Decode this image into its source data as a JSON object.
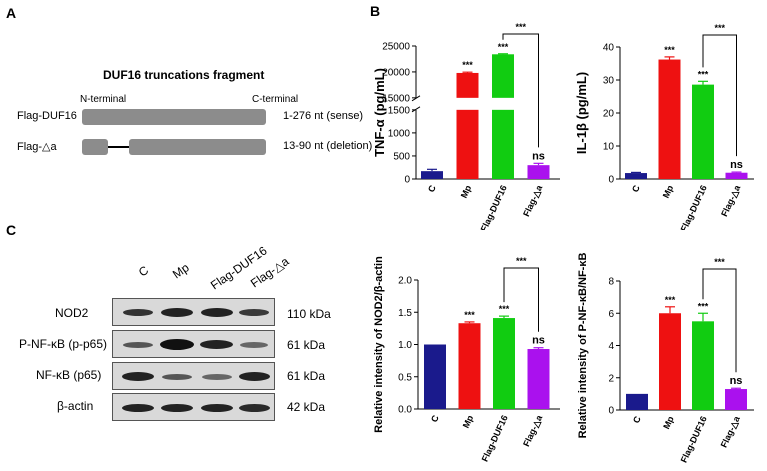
{
  "panels": {
    "a": "A",
    "b": "B",
    "c": "C"
  },
  "panel_a": {
    "title": "DUF16 truncations fragment",
    "n_terminal": "N-terminal",
    "c_terminal": "C-terminal",
    "rows": [
      {
        "label": "Flag-DUF16",
        "desc": "1-276 nt (sense)"
      },
      {
        "label": "Flag-△a",
        "desc": "13-90 nt (deletion)"
      }
    ]
  },
  "panel_c_blot": {
    "lanes": [
      "C",
      "Mp",
      "Flag-DUF16",
      "Flag-△a"
    ],
    "rows": [
      {
        "label": "NOD2",
        "kda": "110 kDa"
      },
      {
        "label": "P-NF-κB (p-p65)",
        "kda": "61 kDa"
      },
      {
        "label": "NF-κB (p65)",
        "kda": "61 kDa"
      },
      {
        "label": "β-actin",
        "kda": "42 kDa"
      }
    ]
  },
  "colors": {
    "C": "#1a1a8c",
    "Mp": "#ee1111",
    "Flag-DUF16": "#11cc11",
    "Flag-△a": "#aa11ee"
  },
  "chart_data": [
    {
      "type": "bar",
      "categories": [
        "C",
        "Mp",
        "Flag-DUF16",
        "Flag-△a"
      ],
      "values": [
        170,
        19800,
        23400,
        300
      ],
      "errors": [
        40,
        150,
        100,
        40
      ],
      "ylabel": "TNF-α (pg/mL)",
      "axis_break": {
        "lower": [
          0,
          1500
        ],
        "upper": [
          15000,
          25000
        ]
      },
      "yticks": [
        "0",
        "500",
        "1000",
        "1500",
        "15000",
        "20000",
        "25000"
      ],
      "bar_annotations": [
        "",
        "***",
        "***",
        "ns"
      ],
      "bracket": {
        "from": "Flag-DUF16",
        "to": "Flag-△a",
        "label": "***"
      }
    },
    {
      "type": "bar",
      "categories": [
        "C",
        "Mp",
        "Flag-DUF16",
        "Flag-△a"
      ],
      "values": [
        1.8,
        36.2,
        28.6,
        1.9
      ],
      "errors": [
        0.2,
        0.8,
        1.0,
        0.2
      ],
      "ylabel": "IL-1β (pg/mL)",
      "ylim": [
        0,
        40
      ],
      "yticks": [
        "0",
        "10",
        "20",
        "30",
        "40"
      ],
      "bar_annotations": [
        "",
        "***",
        "***",
        "ns"
      ],
      "bracket": {
        "from": "Flag-DUF16",
        "to": "Flag-△a",
        "label": "***"
      }
    },
    {
      "type": "bar",
      "categories": [
        "C",
        "Mp",
        "Flag-DUF16",
        "Flag-△a"
      ],
      "values": [
        1.0,
        1.33,
        1.41,
        0.93
      ],
      "errors": [
        0,
        0.02,
        0.03,
        0.02
      ],
      "ylabel": "Relative intensity of NOD2/β-actin",
      "ylim": [
        0,
        2.0
      ],
      "yticks": [
        "0.0",
        "0.5",
        "1.0",
        "1.5",
        "2.0"
      ],
      "bar_annotations": [
        "",
        "***",
        "***",
        "ns"
      ],
      "bracket": {
        "from": "Flag-DUF16",
        "to": "Flag-△a",
        "label": "***"
      }
    },
    {
      "type": "bar",
      "categories": [
        "C",
        "Mp",
        "Flag-DUF16",
        "Flag-△a"
      ],
      "values": [
        1.0,
        6.0,
        5.5,
        1.3
      ],
      "errors": [
        0,
        0.4,
        0.5,
        0.05
      ],
      "ylabel": "Relative intensity of P-NF-κB/NF-κB",
      "ylim": [
        0,
        8
      ],
      "yticks": [
        "0",
        "2",
        "4",
        "6",
        "8"
      ],
      "bar_annotations": [
        "",
        "***",
        "***",
        "ns"
      ],
      "bracket": {
        "from": "Flag-DUF16",
        "to": "Flag-△a",
        "label": "***"
      }
    }
  ]
}
